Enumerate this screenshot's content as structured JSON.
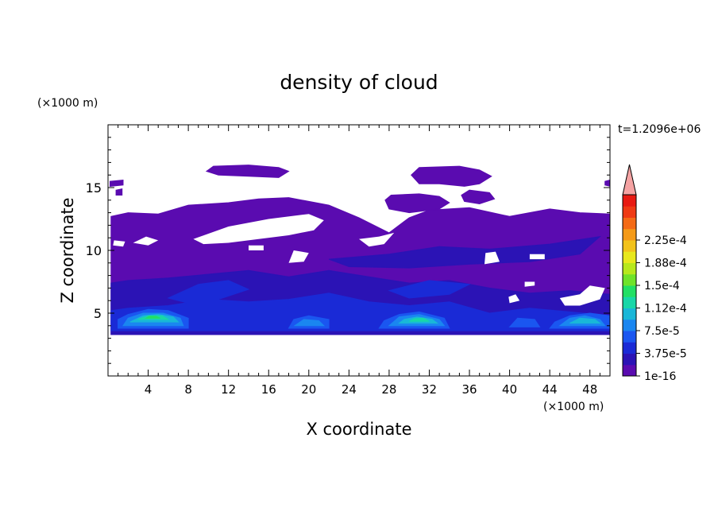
{
  "chart_data": {
    "type": "heatmap",
    "title": "density of cloud",
    "time_label": "t=1.2096e+06",
    "xlabel": "X coordinate",
    "ylabel": "Z coordinate",
    "x_unit": "(×1000 m)",
    "y_unit": "(×1000 m)",
    "xlim": [
      0,
      50
    ],
    "ylim": [
      0,
      20
    ],
    "x_ticks": [
      4,
      8,
      12,
      16,
      20,
      24,
      28,
      32,
      36,
      40,
      44,
      48
    ],
    "y_ticks": [
      5,
      10,
      15
    ],
    "colorbar": {
      "labels": [
        "1e-16",
        "3.75e-5",
        "7.5e-5",
        "1.12e-4",
        "1.5e-4",
        "1.88e-4",
        "2.25e-4"
      ],
      "colors": [
        "#5a0bb0",
        "#2b13b5",
        "#1a2ad6",
        "#1a56f0",
        "#1a86f0",
        "#19b7d8",
        "#18d7a8",
        "#22e064",
        "#6fe32a",
        "#b7e81c",
        "#e8e81c",
        "#f2c21a",
        "#f49a18",
        "#f46a16",
        "#ef3a14",
        "#e81a12"
      ],
      "extend_color": "#f5a3a3"
    },
    "regions": [
      {
        "level": 0,
        "pts": [
          [
            0.3,
            3.3
          ],
          [
            50,
            3.3
          ],
          [
            50,
            12.9
          ],
          [
            47,
            13.0
          ],
          [
            44,
            13.3
          ],
          [
            40,
            12.7
          ],
          [
            36,
            13.4
          ],
          [
            32,
            13.2
          ],
          [
            30,
            12.6
          ],
          [
            28,
            11.4
          ],
          [
            25,
            12.6
          ],
          [
            22,
            13.6
          ],
          [
            18,
            14.2
          ],
          [
            15,
            14.1
          ],
          [
            12,
            13.8
          ],
          [
            8,
            13.6
          ],
          [
            5,
            12.9
          ],
          [
            2,
            13.0
          ],
          [
            0.3,
            12.7
          ]
        ]
      },
      {
        "level": 0,
        "pts": [
          [
            9.8,
            16.3
          ],
          [
            10.5,
            16.7
          ],
          [
            14,
            16.8
          ],
          [
            17,
            16.6
          ],
          [
            18,
            16.3
          ],
          [
            17,
            15.8
          ],
          [
            14,
            15.9
          ],
          [
            11,
            16.0
          ]
        ]
      },
      {
        "level": 0,
        "pts": [
          [
            30.2,
            16.0
          ],
          [
            31,
            16.6
          ],
          [
            35,
            16.7
          ],
          [
            37,
            16.4
          ],
          [
            38.2,
            15.9
          ],
          [
            37,
            15.3
          ],
          [
            35.5,
            15.1
          ],
          [
            33,
            15.3
          ],
          [
            31,
            15.3
          ]
        ]
      },
      {
        "level": 0,
        "pts": [
          [
            27.6,
            14.0
          ],
          [
            28.2,
            14.4
          ],
          [
            31,
            14.5
          ],
          [
            33,
            14.3
          ],
          [
            34,
            13.8
          ],
          [
            33,
            13.3
          ],
          [
            30,
            13.0
          ],
          [
            28,
            13.3
          ]
        ]
      },
      {
        "level": 0,
        "pts": [
          [
            35.2,
            14.4
          ],
          [
            36,
            14.8
          ],
          [
            38,
            14.6
          ],
          [
            38.5,
            14.1
          ],
          [
            37,
            13.7
          ],
          [
            35.5,
            13.9
          ]
        ]
      },
      {
        "level": 0,
        "pts": [
          [
            0.2,
            15.5
          ],
          [
            1.5,
            15.6
          ],
          [
            1.5,
            15.2
          ],
          [
            0.2,
            15.1
          ]
        ]
      },
      {
        "level": 0,
        "pts": [
          [
            0.8,
            14.8
          ],
          [
            1.4,
            14.9
          ],
          [
            1.4,
            14.4
          ],
          [
            0.8,
            14.4
          ]
        ]
      },
      {
        "level": 0,
        "pts": [
          [
            49.5,
            15.5
          ],
          [
            50,
            15.6
          ],
          [
            50,
            15.1
          ],
          [
            49.5,
            15.2
          ]
        ]
      },
      {
        "level": 1,
        "pts": [
          [
            0.3,
            3.3
          ],
          [
            50,
            3.3
          ],
          [
            50,
            6.5
          ],
          [
            46,
            6.8
          ],
          [
            42,
            6.6
          ],
          [
            38,
            7.0
          ],
          [
            34,
            7.6
          ],
          [
            30,
            7.4
          ],
          [
            26,
            7.9
          ],
          [
            22,
            8.4
          ],
          [
            18,
            7.9
          ],
          [
            14,
            8.4
          ],
          [
            10,
            8.1
          ],
          [
            6,
            7.8
          ],
          [
            2,
            7.6
          ],
          [
            0.3,
            7.4
          ]
        ]
      },
      {
        "level": 1,
        "pts": [
          [
            22,
            9.3
          ],
          [
            28,
            9.7
          ],
          [
            33,
            10.3
          ],
          [
            38,
            10.1
          ],
          [
            44,
            10.5
          ],
          [
            49,
            11.1
          ],
          [
            47,
            9.7
          ],
          [
            42,
            9.1
          ],
          [
            36,
            8.9
          ],
          [
            30,
            8.6
          ],
          [
            24,
            8.7
          ]
        ]
      },
      {
        "level": 2,
        "pts": [
          [
            0.3,
            3.6
          ],
          [
            50,
            3.6
          ],
          [
            50,
            4.8
          ],
          [
            46,
            5.1
          ],
          [
            42,
            5.4
          ],
          [
            38,
            5.0
          ],
          [
            34,
            5.9
          ],
          [
            30,
            5.6
          ],
          [
            26,
            5.9
          ],
          [
            22,
            6.6
          ],
          [
            18,
            6.1
          ],
          [
            14,
            5.9
          ],
          [
            10,
            6.1
          ],
          [
            6,
            5.6
          ],
          [
            2,
            5.4
          ],
          [
            0.3,
            5.2
          ]
        ]
      },
      {
        "level": 2,
        "pts": [
          [
            6,
            6.2
          ],
          [
            9,
            7.3
          ],
          [
            12,
            7.6
          ],
          [
            14,
            6.9
          ],
          [
            11,
            6.1
          ],
          [
            8,
            5.8
          ]
        ]
      },
      {
        "level": 2,
        "pts": [
          [
            28,
            6.8
          ],
          [
            32,
            7.6
          ],
          [
            36,
            7.3
          ],
          [
            34,
            6.5
          ],
          [
            30,
            6.2
          ]
        ]
      },
      {
        "level": 3,
        "pts": [
          [
            1,
            3.8
          ],
          [
            8,
            3.8
          ],
          [
            8,
            4.6
          ],
          [
            6,
            5.2
          ],
          [
            4,
            5.3
          ],
          [
            2,
            4.9
          ],
          [
            1,
            4.5
          ]
        ]
      },
      {
        "level": 3,
        "pts": [
          [
            18,
            3.8
          ],
          [
            22,
            3.8
          ],
          [
            22,
            4.5
          ],
          [
            20,
            4.8
          ],
          [
            18.5,
            4.5
          ]
        ]
      },
      {
        "level": 3,
        "pts": [
          [
            27,
            3.8
          ],
          [
            34,
            3.8
          ],
          [
            33.5,
            4.6
          ],
          [
            31,
            5.1
          ],
          [
            29,
            4.9
          ],
          [
            27.5,
            4.4
          ]
        ]
      },
      {
        "level": 3,
        "pts": [
          [
            40,
            3.9
          ],
          [
            43,
            3.9
          ],
          [
            42.5,
            4.5
          ],
          [
            40.8,
            4.6
          ]
        ]
      },
      {
        "level": 3,
        "pts": [
          [
            44,
            3.8
          ],
          [
            50,
            3.8
          ],
          [
            50,
            4.8
          ],
          [
            48,
            5.0
          ],
          [
            46,
            4.8
          ],
          [
            44.5,
            4.3
          ]
        ]
      },
      {
        "level": 4,
        "pts": [
          [
            1.5,
            4.0
          ],
          [
            7.5,
            4.0
          ],
          [
            7.2,
            4.6
          ],
          [
            5.5,
            5.0
          ],
          [
            3.5,
            5.0
          ],
          [
            2,
            4.6
          ]
        ]
      },
      {
        "level": 4,
        "pts": [
          [
            28,
            4.0
          ],
          [
            33.5,
            4.0
          ],
          [
            33,
            4.5
          ],
          [
            31,
            4.9
          ],
          [
            29,
            4.7
          ]
        ]
      },
      {
        "level": 4,
        "pts": [
          [
            45,
            4.0
          ],
          [
            49.5,
            4.0
          ],
          [
            49,
            4.5
          ],
          [
            47.5,
            4.8
          ],
          [
            46,
            4.6
          ]
        ]
      },
      {
        "level": 4,
        "pts": [
          [
            18.6,
            4.0
          ],
          [
            21.5,
            4.0
          ],
          [
            21,
            4.4
          ],
          [
            19.5,
            4.5
          ]
        ]
      },
      {
        "level": 5,
        "pts": [
          [
            2.2,
            4.3
          ],
          [
            7,
            4.3
          ],
          [
            6.5,
            4.7
          ],
          [
            5,
            4.9
          ],
          [
            3.5,
            4.8
          ]
        ]
      },
      {
        "level": 5,
        "pts": [
          [
            29,
            4.2
          ],
          [
            32.8,
            4.2
          ],
          [
            32.3,
            4.5
          ],
          [
            30.8,
            4.7
          ],
          [
            29.5,
            4.5
          ]
        ]
      },
      {
        "level": 5,
        "pts": [
          [
            46,
            4.2
          ],
          [
            49,
            4.2
          ],
          [
            48.5,
            4.5
          ],
          [
            47,
            4.6
          ]
        ]
      },
      {
        "level": 6,
        "pts": [
          [
            3,
            4.5
          ],
          [
            6,
            4.5
          ],
          [
            5.4,
            4.8
          ],
          [
            4,
            4.8
          ]
        ]
      },
      {
        "level": 6,
        "pts": [
          [
            30,
            4.35
          ],
          [
            32,
            4.35
          ],
          [
            31.4,
            4.6
          ],
          [
            30.5,
            4.55
          ]
        ]
      },
      {
        "level": 7,
        "pts": [
          [
            3.8,
            4.6
          ],
          [
            5.2,
            4.6
          ],
          [
            4.8,
            4.75
          ],
          [
            4.1,
            4.75
          ]
        ]
      }
    ],
    "gaps": [
      {
        "pts": [
          [
            2.5,
            10.6
          ],
          [
            4,
            10.4
          ],
          [
            5,
            10.8
          ],
          [
            3.8,
            11.1
          ]
        ]
      },
      {
        "pts": [
          [
            8.5,
            10.9
          ],
          [
            12,
            11.9
          ],
          [
            16,
            12.5
          ],
          [
            20,
            12.9
          ],
          [
            21.5,
            12.4
          ],
          [
            20.5,
            11.6
          ],
          [
            18,
            11.2
          ],
          [
            15,
            10.9
          ],
          [
            12,
            10.6
          ],
          [
            9.5,
            10.5
          ]
        ]
      },
      {
        "pts": [
          [
            14,
            10.0
          ],
          [
            15.5,
            10.0
          ],
          [
            15.5,
            10.4
          ],
          [
            14,
            10.4
          ]
        ]
      },
      {
        "pts": [
          [
            0.5,
            10.4
          ],
          [
            1.5,
            10.3
          ],
          [
            1.7,
            10.7
          ],
          [
            0.6,
            10.8
          ]
        ]
      },
      {
        "pts": [
          [
            25,
            10.9
          ],
          [
            27,
            11.1
          ],
          [
            28.5,
            11.4
          ],
          [
            27.5,
            10.5
          ],
          [
            26,
            10.3
          ]
        ]
      },
      {
        "pts": [
          [
            18,
            9.0
          ],
          [
            19.5,
            9.1
          ],
          [
            20,
            9.8
          ],
          [
            18.5,
            10.0
          ]
        ]
      },
      {
        "pts": [
          [
            37.5,
            8.9
          ],
          [
            39,
            9.1
          ],
          [
            38.6,
            9.9
          ],
          [
            37.6,
            9.8
          ]
        ]
      },
      {
        "pts": [
          [
            42,
            9.3
          ],
          [
            43.5,
            9.3
          ],
          [
            43.5,
            9.7
          ],
          [
            42,
            9.7
          ]
        ]
      },
      {
        "pts": [
          [
            45,
            6.2
          ],
          [
            47,
            6.5
          ],
          [
            48,
            7.2
          ],
          [
            49.5,
            7.0
          ],
          [
            49,
            6.1
          ],
          [
            47,
            5.6
          ],
          [
            45.5,
            5.6
          ]
        ]
      },
      {
        "pts": [
          [
            40,
            5.8
          ],
          [
            41,
            6.0
          ],
          [
            40.6,
            6.5
          ],
          [
            39.9,
            6.3
          ]
        ]
      },
      {
        "pts": [
          [
            41.5,
            7.1
          ],
          [
            42.5,
            7.2
          ],
          [
            42.5,
            7.5
          ],
          [
            41.5,
            7.5
          ]
        ]
      }
    ]
  }
}
